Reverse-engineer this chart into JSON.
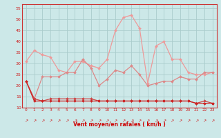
{
  "x": [
    0,
    1,
    2,
    3,
    4,
    5,
    6,
    7,
    8,
    9,
    10,
    11,
    12,
    13,
    14,
    15,
    16,
    17,
    18,
    19,
    20,
    21,
    22,
    23
  ],
  "line1": [
    22,
    13,
    13,
    13,
    13,
    13,
    13,
    13,
    13,
    13,
    13,
    13,
    13,
    13,
    13,
    13,
    13,
    13,
    13,
    13,
    13,
    12,
    12,
    12
  ],
  "line2": [
    22,
    14,
    13,
    14,
    14,
    14,
    14,
    14,
    14,
    13,
    13,
    13,
    13,
    13,
    13,
    13,
    13,
    13,
    13,
    13,
    13,
    12,
    13,
    12
  ],
  "line3": [
    22,
    14,
    24,
    24,
    24,
    26,
    26,
    32,
    28,
    20,
    23,
    27,
    26,
    29,
    25,
    20,
    21,
    22,
    22,
    24,
    23,
    23,
    26,
    26
  ],
  "line4": [
    31,
    36,
    34,
    33,
    27,
    26,
    31,
    31,
    29,
    28,
    32,
    45,
    51,
    52,
    46,
    21,
    38,
    40,
    32,
    32,
    26,
    25,
    25,
    26
  ],
  "xlabel": "Vent moyen/en rafales ( km/h )",
  "ylim": [
    10,
    57
  ],
  "yticks": [
    10,
    15,
    20,
    25,
    30,
    35,
    40,
    45,
    50,
    55
  ],
  "xlim": [
    -0.5,
    23.5
  ],
  "bg_color": "#cce8e8",
  "grid_color": "#aacccc",
  "line1_color": "#cc2222",
  "line2_color": "#cc4444",
  "line3_color": "#dd8888",
  "line4_color": "#ee9999",
  "markersize": 2.0,
  "linewidth": 0.9,
  "arrow_char": "↗"
}
